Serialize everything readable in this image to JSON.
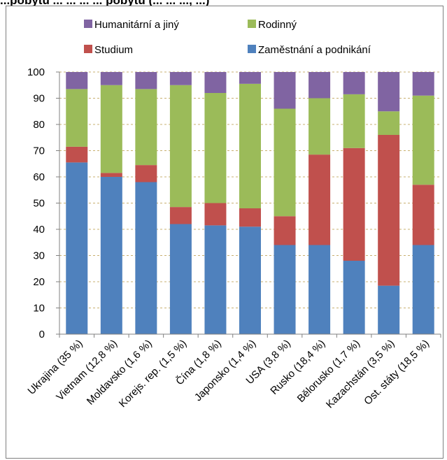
{
  "title_fragment": "...pobytu ... ... ... ... pobytu (... ... ..., ...)",
  "chart_data": {
    "type": "bar",
    "stacked": true,
    "percent_stacked": true,
    "categories": [
      "Ukrajina (35 %)",
      "Vietnam (12,8 %)",
      "Moldavsko (1,6 %)",
      "Korejs. rep. (1,5 %)",
      "Čína (1,8 %)",
      "Japonsko (1,4 %)",
      "USA (3,8 %)",
      "Rusko (18,4 %)",
      "Bělorusko (1,7 %)",
      "Kazachstán (3,5 %)",
      "Ost. státy (18,5 %)"
    ],
    "series": [
      {
        "name": "Zaměstnání a podnikání",
        "color": "#4f81bd",
        "values": [
          65.5,
          60,
          58,
          42,
          41.5,
          41,
          34,
          34,
          28,
          18.5,
          34
        ]
      },
      {
        "name": "Studium",
        "color": "#c0504d",
        "values": [
          6,
          1.5,
          6.5,
          6.5,
          8.5,
          7,
          11,
          34.5,
          43,
          57.5,
          23
        ]
      },
      {
        "name": "Rodinný",
        "color": "#9bbb59",
        "values": [
          22,
          33.5,
          29,
          46.5,
          42,
          47.5,
          41,
          21.5,
          20.5,
          9,
          34
        ]
      },
      {
        "name": "Humanitární a jiný",
        "color": "#8064a2",
        "values": [
          6.5,
          5,
          6.5,
          5,
          8,
          4.5,
          14,
          10,
          8.5,
          15,
          9
        ]
      }
    ],
    "ylim": [
      0,
      100
    ],
    "yticks": [
      "0",
      "10",
      "20",
      "30",
      "40",
      "50",
      "60",
      "70",
      "80",
      "90",
      "100"
    ],
    "grid": "horizontal dashed",
    "legend": {
      "placement": "top",
      "items": [
        {
          "label": "Humanitární a jiný",
          "color": "#8064a2"
        },
        {
          "label": "Rodinný",
          "color": "#9bbb59"
        },
        {
          "label": "Studium",
          "color": "#c0504d"
        },
        {
          "label": "Zaměstnání a podnikání",
          "color": "#4f81bd"
        }
      ]
    },
    "title": "",
    "xlabel": "",
    "ylabel": ""
  }
}
